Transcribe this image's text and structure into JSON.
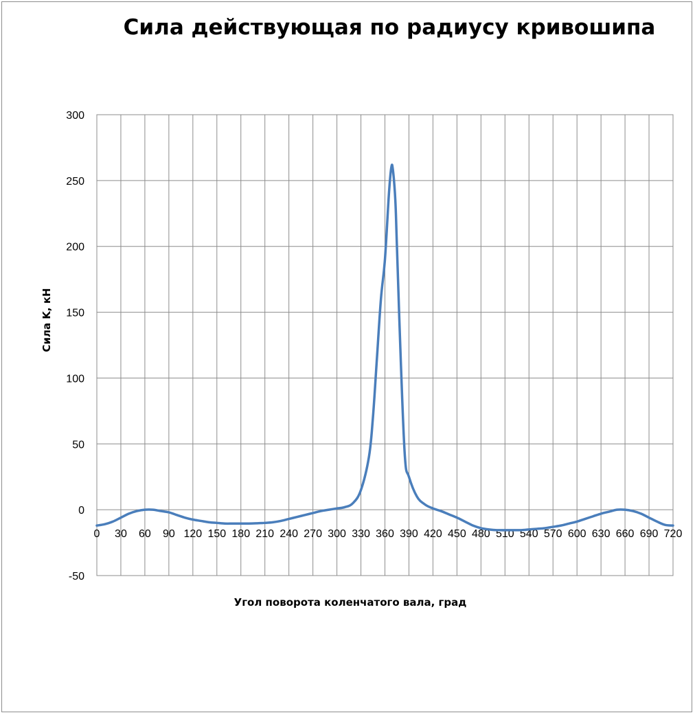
{
  "chart_data": {
    "type": "line",
    "title": "Сила действующая по радиусу кривошипа",
    "xlabel": "Угол поворота коленчатого вала, град",
    "ylabel": "Сила K, кН",
    "xlim": [
      0,
      720
    ],
    "ylim": [
      -50,
      300
    ],
    "x_ticks": [
      0,
      30,
      60,
      90,
      120,
      150,
      180,
      210,
      240,
      270,
      300,
      330,
      360,
      390,
      420,
      450,
      480,
      510,
      540,
      570,
      600,
      630,
      660,
      690,
      720
    ],
    "y_ticks": [
      -50,
      0,
      50,
      100,
      150,
      200,
      250,
      300
    ],
    "grid": true,
    "legend": "none",
    "series": [
      {
        "color": "#4a7ebb",
        "x": [
          0,
          10,
          20,
          30,
          40,
          50,
          60,
          70,
          80,
          90,
          100,
          110,
          120,
          130,
          140,
          150,
          160,
          170,
          180,
          190,
          200,
          210,
          220,
          230,
          240,
          250,
          260,
          270,
          280,
          290,
          300,
          310,
          320,
          330,
          340,
          345,
          350,
          355,
          360,
          365,
          368,
          370,
          373,
          375,
          380,
          385,
          390,
          400,
          410,
          420,
          430,
          440,
          450,
          460,
          470,
          480,
          490,
          500,
          510,
          520,
          530,
          540,
          550,
          560,
          570,
          580,
          590,
          600,
          610,
          620,
          630,
          640,
          650,
          660,
          670,
          680,
          690,
          700,
          710,
          720
        ],
        "y": [
          -12,
          -11,
          -9,
          -6,
          -3,
          -1,
          0,
          0,
          -1,
          -2,
          -4,
          -6,
          -7.5,
          -8.5,
          -9.5,
          -10,
          -10.5,
          -10.5,
          -10.5,
          -10.5,
          -10.3,
          -10,
          -9.5,
          -8.5,
          -7,
          -5.5,
          -4,
          -2.5,
          -1,
          0,
          1,
          2,
          5,
          15,
          40,
          70,
          115,
          160,
          190,
          240,
          260,
          258,
          235,
          200,
          110,
          40,
          25,
          10,
          4,
          1,
          -1,
          -3.5,
          -6,
          -9,
          -12,
          -14,
          -15,
          -15.5,
          -15.5,
          -15.5,
          -15.5,
          -15,
          -14.5,
          -14,
          -13,
          -12,
          -10.5,
          -9,
          -7,
          -5,
          -3,
          -1.5,
          0,
          0,
          -1,
          -3,
          -6,
          -9,
          -11.5,
          -12
        ]
      }
    ]
  }
}
